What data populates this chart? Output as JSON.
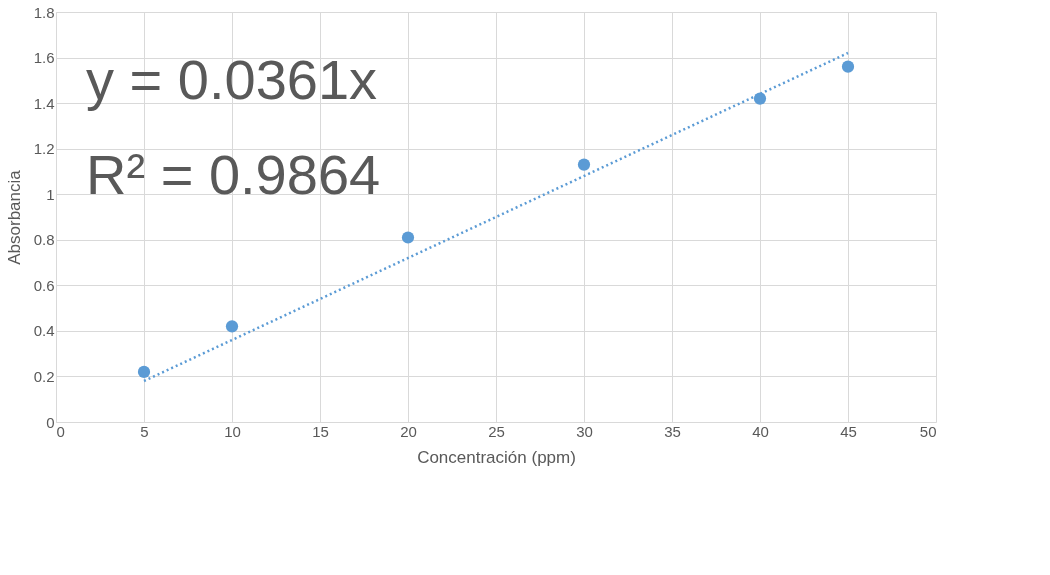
{
  "chart_data": {
    "type": "scatter",
    "xlabel": "Concentración (ppm)",
    "ylabel": "Absorbancia",
    "x": [
      5,
      10,
      20,
      30,
      40,
      45
    ],
    "series": [
      {
        "color": "#5b9bd5",
        "values": [
          0.22,
          0.42,
          0.81,
          1.13,
          1.42,
          1.56
        ],
        "marker": "circle"
      },
      {
        "type": "line",
        "color": "#5b9bd5",
        "x": [
          5,
          45
        ],
        "values": [
          0.18,
          1.62
        ],
        "line_style": "dotted"
      }
    ],
    "xlim": [
      0,
      50
    ],
    "xticks": [
      0,
      5,
      10,
      15,
      20,
      25,
      30,
      35,
      40,
      45,
      50
    ],
    "ylim": [
      0,
      1.8
    ],
    "yticks": [
      0,
      0.2,
      0.4,
      0.6,
      0.8,
      1,
      1.2,
      1.4,
      1.6,
      1.8
    ],
    "annotations": [
      "y = 0.0361x",
      "R² = 0.9864"
    ],
    "grid": true
  }
}
